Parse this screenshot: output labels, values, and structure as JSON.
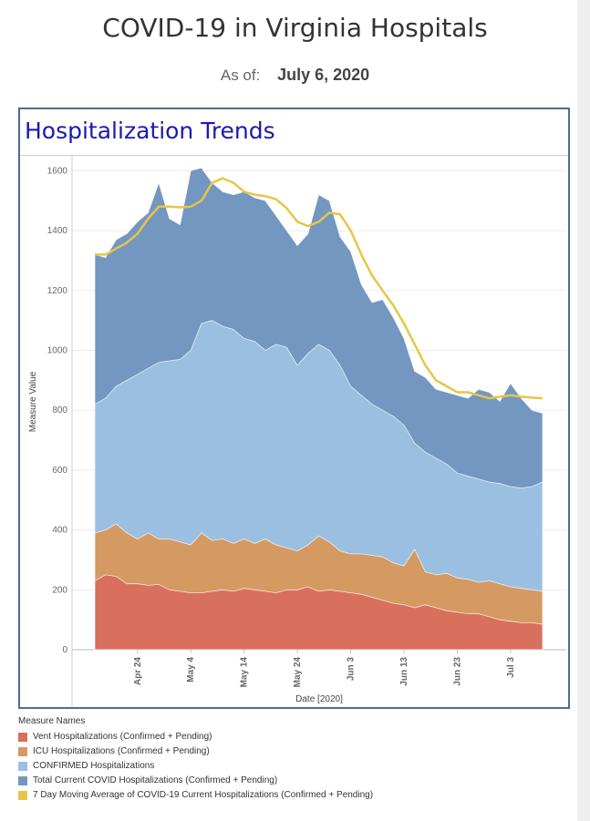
{
  "header": {
    "title": "COVID-19 in Virginia Hospitals",
    "as_of_label": "As of:",
    "as_of_date": "July 6, 2020"
  },
  "panel": {
    "title": "Hospitalization Trends"
  },
  "legend": {
    "title": "Measure Names",
    "items": [
      {
        "label": "Vent Hospitalizations (Confirmed + Pending)",
        "color": "#d9705e"
      },
      {
        "label": "ICU Hospitalizations (Confirmed + Pending)",
        "color": "#d49a62"
      },
      {
        "label": "CONFIRMED Hospitalizations",
        "color": "#9bbfe0"
      },
      {
        "label": "Total Current COVID Hospitalizations (Confirmed + Pending)",
        "color": "#7397c0"
      },
      {
        "label": "7 Day Moving Average of COVID-19 Current Hospitalizations (Confirmed + Pending)",
        "color": "#e8c547"
      }
    ]
  },
  "chart_data": {
    "type": "area",
    "xlabel": "Date [2020]",
    "ylabel": "Measure Value",
    "ylim": [
      0,
      1650
    ],
    "yticks": [
      0,
      200,
      400,
      600,
      800,
      1000,
      1200,
      1400,
      1600
    ],
    "xticks": [
      {
        "label": "Apr 24",
        "day": 8
      },
      {
        "label": "May 4",
        "day": 18
      },
      {
        "label": "May 14",
        "day": 28
      },
      {
        "label": "May 24",
        "day": 38
      },
      {
        "label": "Jun 3",
        "day": 48
      },
      {
        "label": "Jun 13",
        "day": 58
      },
      {
        "label": "Jun 23",
        "day": 68
      },
      {
        "label": "Jul 3",
        "day": 78
      }
    ],
    "x_start_date": "Apr 16",
    "grid": true,
    "series": [
      {
        "name": "Vent Hospitalizations (Confirmed + Pending)",
        "color": "#d9705e",
        "values": [
          [
            0,
            230
          ],
          [
            2,
            250
          ],
          [
            4,
            245
          ],
          [
            6,
            220
          ],
          [
            8,
            220
          ],
          [
            10,
            215
          ],
          [
            12,
            218
          ],
          [
            14,
            200
          ],
          [
            16,
            195
          ],
          [
            18,
            190
          ],
          [
            20,
            190
          ],
          [
            22,
            195
          ],
          [
            24,
            200
          ],
          [
            26,
            195
          ],
          [
            28,
            205
          ],
          [
            30,
            200
          ],
          [
            32,
            195
          ],
          [
            34,
            190
          ],
          [
            36,
            200
          ],
          [
            38,
            200
          ],
          [
            40,
            210
          ],
          [
            42,
            195
          ],
          [
            44,
            200
          ],
          [
            46,
            195
          ],
          [
            48,
            190
          ],
          [
            50,
            185
          ],
          [
            52,
            175
          ],
          [
            54,
            165
          ],
          [
            56,
            155
          ],
          [
            58,
            150
          ],
          [
            60,
            140
          ],
          [
            62,
            150
          ],
          [
            64,
            140
          ],
          [
            66,
            130
          ],
          [
            68,
            125
          ],
          [
            70,
            120
          ],
          [
            72,
            120
          ],
          [
            74,
            110
          ],
          [
            76,
            100
          ],
          [
            78,
            95
          ],
          [
            80,
            90
          ],
          [
            82,
            90
          ],
          [
            84,
            85
          ]
        ]
      },
      {
        "name": "ICU Hospitalizations (Confirmed + Pending)",
        "color": "#d49a62",
        "values": [
          [
            0,
            390
          ],
          [
            2,
            400
          ],
          [
            4,
            420
          ],
          [
            6,
            390
          ],
          [
            8,
            370
          ],
          [
            10,
            390
          ],
          [
            12,
            370
          ],
          [
            14,
            370
          ],
          [
            16,
            360
          ],
          [
            18,
            350
          ],
          [
            20,
            390
          ],
          [
            22,
            365
          ],
          [
            24,
            370
          ],
          [
            26,
            355
          ],
          [
            28,
            370
          ],
          [
            30,
            355
          ],
          [
            32,
            370
          ],
          [
            34,
            350
          ],
          [
            36,
            340
          ],
          [
            38,
            330
          ],
          [
            40,
            350
          ],
          [
            42,
            380
          ],
          [
            44,
            360
          ],
          [
            46,
            330
          ],
          [
            48,
            320
          ],
          [
            50,
            320
          ],
          [
            52,
            315
          ],
          [
            54,
            310
          ],
          [
            56,
            290
          ],
          [
            58,
            280
          ],
          [
            60,
            335
          ],
          [
            62,
            260
          ],
          [
            64,
            250
          ],
          [
            66,
            255
          ],
          [
            68,
            240
          ],
          [
            70,
            235
          ],
          [
            72,
            225
          ],
          [
            74,
            230
          ],
          [
            76,
            220
          ],
          [
            78,
            210
          ],
          [
            80,
            205
          ],
          [
            82,
            200
          ],
          [
            84,
            195
          ]
        ]
      },
      {
        "name": "CONFIRMED Hospitalizations",
        "color": "#9bbfe0",
        "values": [
          [
            0,
            820
          ],
          [
            2,
            840
          ],
          [
            4,
            880
          ],
          [
            6,
            900
          ],
          [
            8,
            920
          ],
          [
            10,
            940
          ],
          [
            12,
            960
          ],
          [
            14,
            965
          ],
          [
            16,
            970
          ],
          [
            18,
            1000
          ],
          [
            20,
            1090
          ],
          [
            22,
            1100
          ],
          [
            24,
            1080
          ],
          [
            26,
            1070
          ],
          [
            28,
            1040
          ],
          [
            30,
            1030
          ],
          [
            32,
            1000
          ],
          [
            34,
            1020
          ],
          [
            36,
            1010
          ],
          [
            38,
            950
          ],
          [
            40,
            990
          ],
          [
            42,
            1020
          ],
          [
            44,
            1000
          ],
          [
            46,
            950
          ],
          [
            48,
            880
          ],
          [
            50,
            850
          ],
          [
            52,
            820
          ],
          [
            54,
            800
          ],
          [
            56,
            780
          ],
          [
            58,
            750
          ],
          [
            60,
            690
          ],
          [
            62,
            660
          ],
          [
            64,
            640
          ],
          [
            66,
            620
          ],
          [
            68,
            590
          ],
          [
            70,
            580
          ],
          [
            72,
            570
          ],
          [
            74,
            560
          ],
          [
            76,
            555
          ],
          [
            78,
            545
          ],
          [
            80,
            540
          ],
          [
            82,
            545
          ],
          [
            84,
            560
          ]
        ]
      },
      {
        "name": "Total Current COVID Hospitalizations (Confirmed + Pending)",
        "color": "#7397c0",
        "values": [
          [
            0,
            1320
          ],
          [
            2,
            1310
          ],
          [
            4,
            1370
          ],
          [
            6,
            1390
          ],
          [
            8,
            1430
          ],
          [
            10,
            1460
          ],
          [
            12,
            1560
          ],
          [
            14,
            1440
          ],
          [
            16,
            1420
          ],
          [
            18,
            1600
          ],
          [
            20,
            1610
          ],
          [
            22,
            1560
          ],
          [
            24,
            1530
          ],
          [
            26,
            1520
          ],
          [
            28,
            1530
          ],
          [
            30,
            1510
          ],
          [
            32,
            1500
          ],
          [
            34,
            1450
          ],
          [
            36,
            1400
          ],
          [
            38,
            1350
          ],
          [
            40,
            1390
          ],
          [
            42,
            1520
          ],
          [
            44,
            1500
          ],
          [
            46,
            1380
          ],
          [
            48,
            1330
          ],
          [
            50,
            1220
          ],
          [
            52,
            1160
          ],
          [
            54,
            1170
          ],
          [
            56,
            1110
          ],
          [
            58,
            1040
          ],
          [
            60,
            930
          ],
          [
            62,
            910
          ],
          [
            64,
            870
          ],
          [
            66,
            860
          ],
          [
            68,
            850
          ],
          [
            70,
            840
          ],
          [
            72,
            870
          ],
          [
            74,
            860
          ],
          [
            76,
            830
          ],
          [
            78,
            890
          ],
          [
            80,
            840
          ],
          [
            82,
            800
          ],
          [
            84,
            790
          ]
        ]
      }
    ],
    "moving_average": {
      "name": "7 Day Moving Average of COVID-19 Current Hospitalizations (Confirmed + Pending)",
      "color": "#e8c547",
      "values": [
        [
          0,
          1320
        ],
        [
          2,
          1320
        ],
        [
          4,
          1340
        ],
        [
          6,
          1360
        ],
        [
          8,
          1390
        ],
        [
          10,
          1440
        ],
        [
          12,
          1480
        ],
        [
          14,
          1480
        ],
        [
          16,
          1478
        ],
        [
          18,
          1480
        ],
        [
          20,
          1500
        ],
        [
          22,
          1560
        ],
        [
          24,
          1575
        ],
        [
          26,
          1560
        ],
        [
          28,
          1530
        ],
        [
          30,
          1520
        ],
        [
          32,
          1515
        ],
        [
          34,
          1505
        ],
        [
          36,
          1475
        ],
        [
          38,
          1430
        ],
        [
          40,
          1415
        ],
        [
          42,
          1430
        ],
        [
          44,
          1460
        ],
        [
          46,
          1455
        ],
        [
          48,
          1400
        ],
        [
          50,
          1320
        ],
        [
          52,
          1250
        ],
        [
          54,
          1200
        ],
        [
          56,
          1150
        ],
        [
          58,
          1090
        ],
        [
          60,
          1020
        ],
        [
          62,
          950
        ],
        [
          64,
          900
        ],
        [
          66,
          880
        ],
        [
          68,
          860
        ],
        [
          70,
          860
        ],
        [
          72,
          850
        ],
        [
          74,
          840
        ],
        [
          76,
          845
        ],
        [
          78,
          850
        ],
        [
          80,
          845
        ],
        [
          82,
          842
        ],
        [
          84,
          840
        ]
      ]
    }
  }
}
